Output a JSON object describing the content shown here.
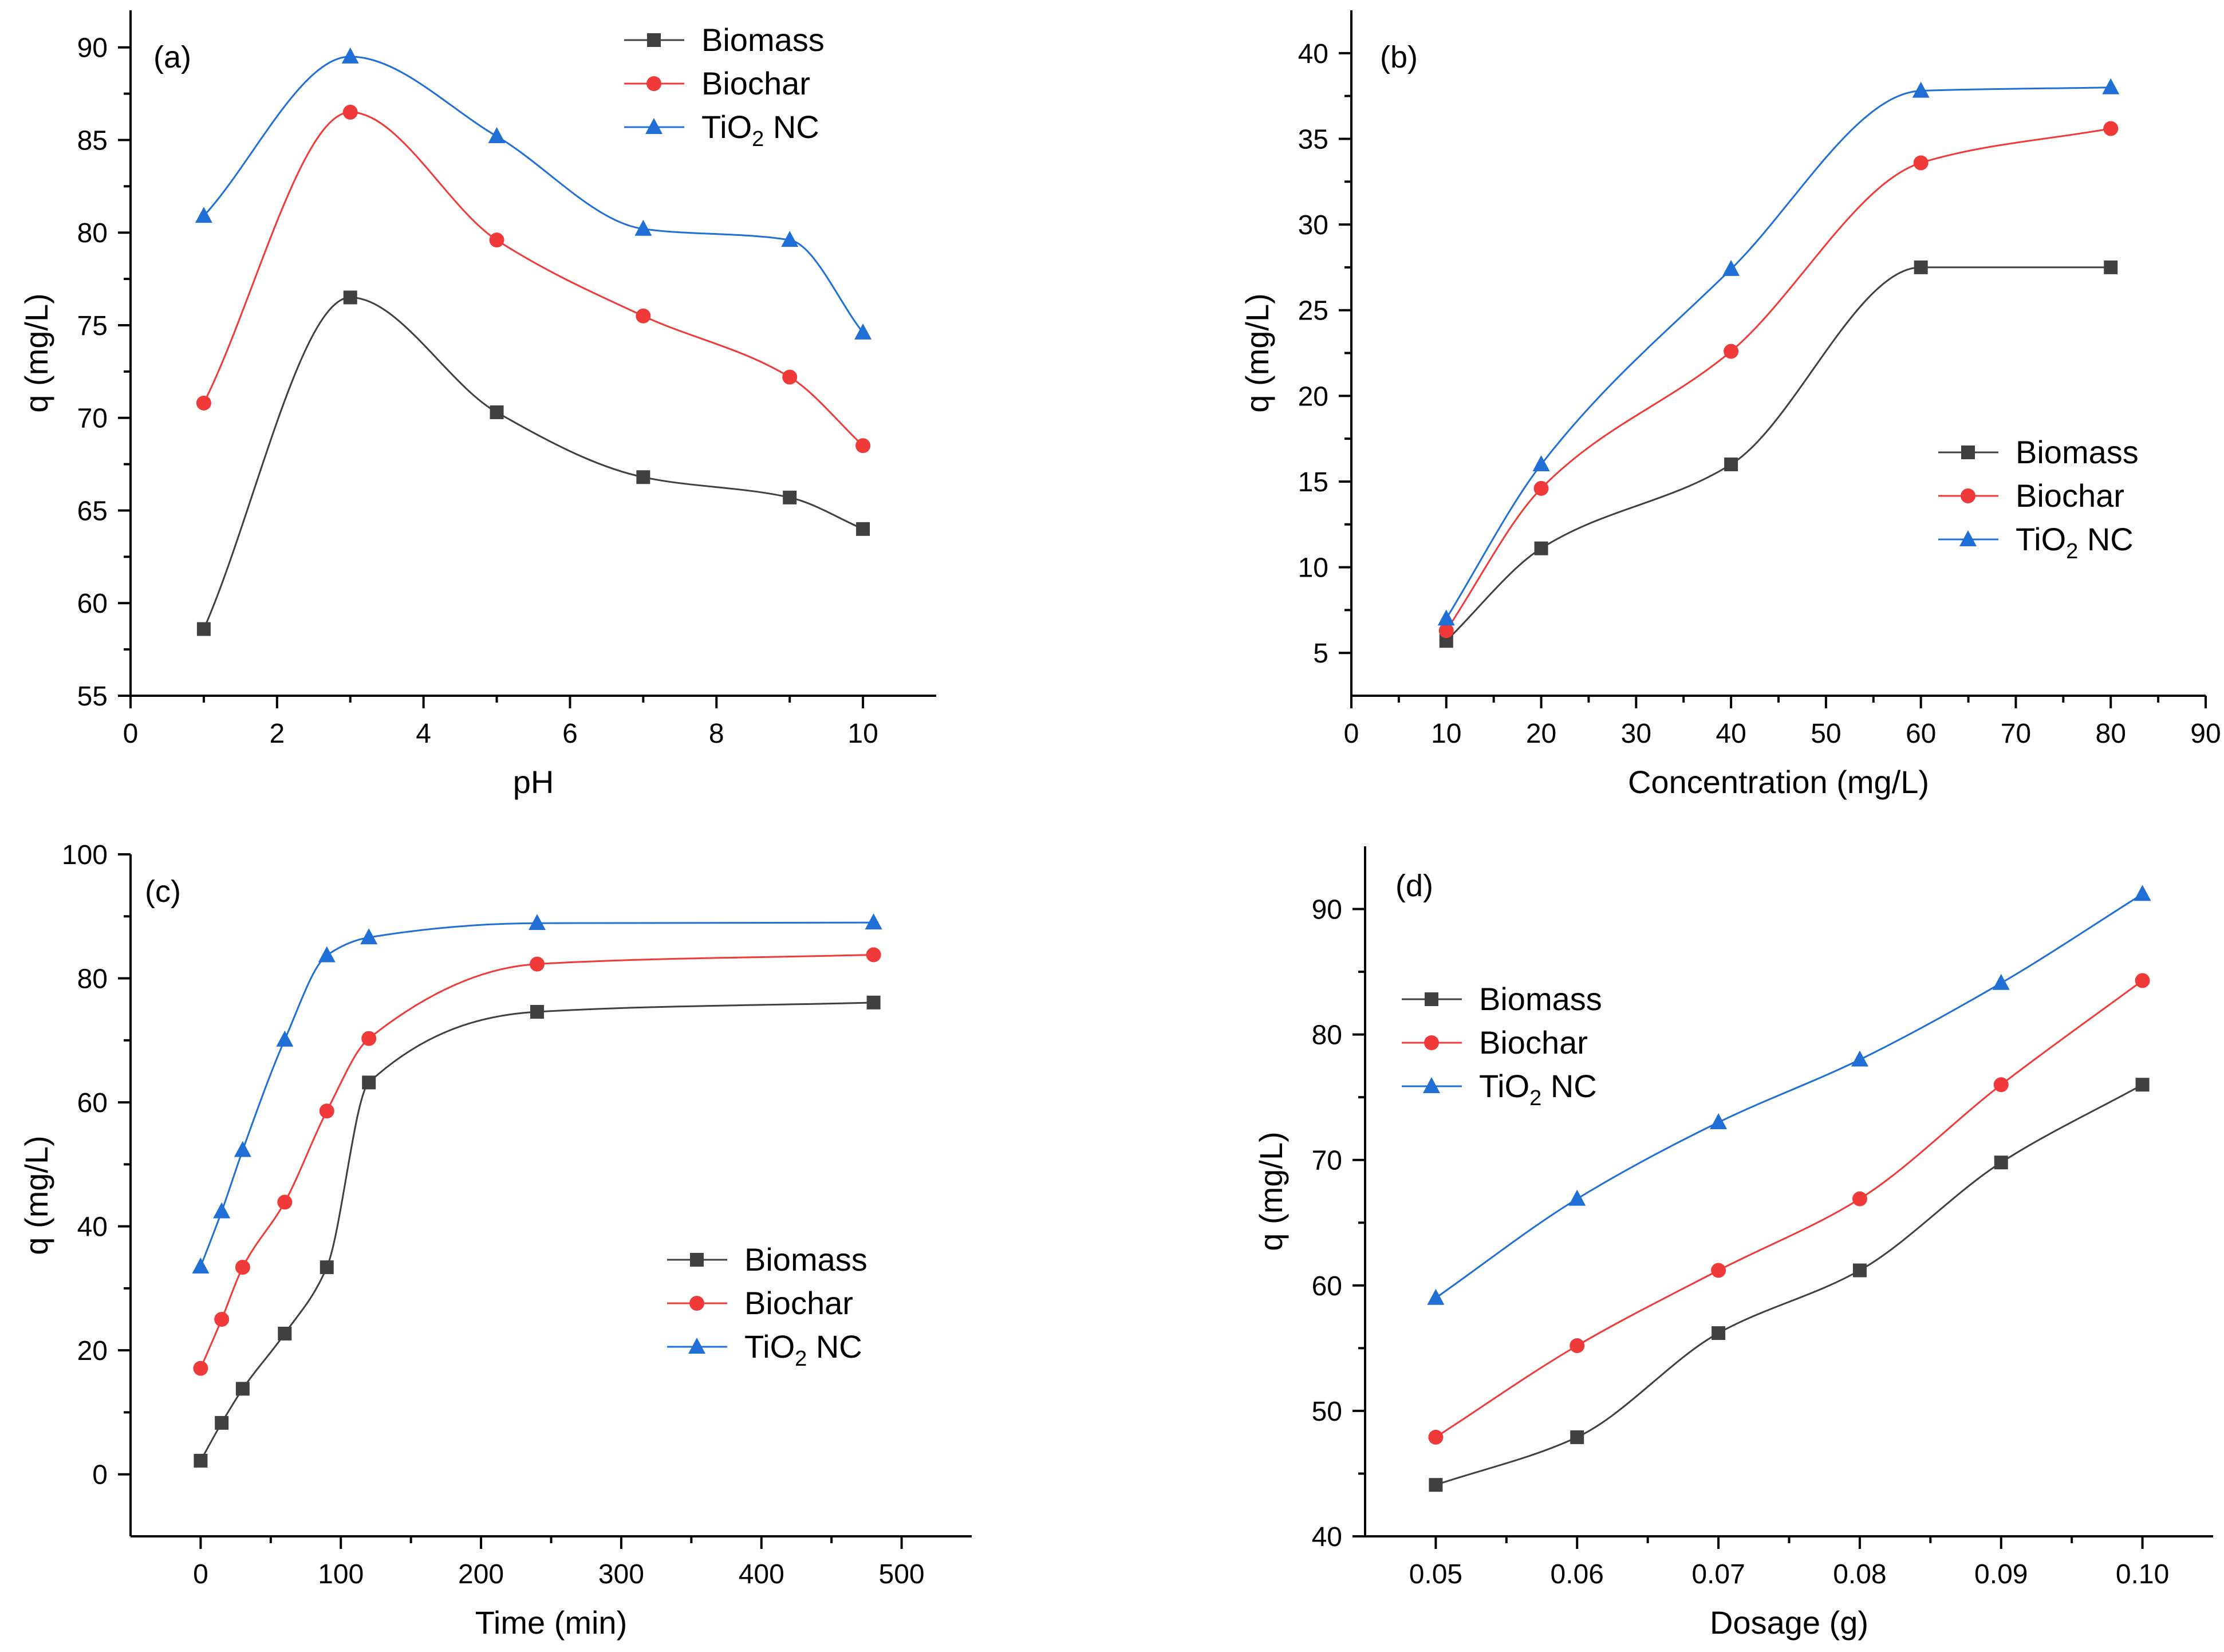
{
  "chart_data": [
    {
      "type": "line",
      "panel_label": "(a)",
      "title": "",
      "xlabel": "pH",
      "ylabel": "q (mg/L)",
      "xlim": [
        0,
        11
      ],
      "ylim": [
        55,
        92
      ],
      "xticks": [
        0,
        2,
        4,
        6,
        8,
        10
      ],
      "xtick_labels": [
        "0",
        "2",
        "4",
        "6",
        "8",
        "10"
      ],
      "yticks": [
        55,
        60,
        65,
        70,
        75,
        80,
        85,
        90
      ],
      "ytick_labels": [
        "55",
        "60",
        "65",
        "70",
        "75",
        "80",
        "85",
        "90"
      ],
      "x": [
        1,
        3,
        5,
        7,
        9,
        10
      ],
      "legend_position": "top-right",
      "series": [
        {
          "name": "Biomass",
          "legend_main": "Biomass",
          "legend_sub": "",
          "legend_tail": "",
          "marker": "square",
          "color": "#404040",
          "values": [
            58.6,
            76.5,
            70.3,
            66.8,
            65.7,
            64.0
          ]
        },
        {
          "name": "Biochar",
          "legend_main": "Biochar",
          "legend_sub": "",
          "legend_tail": "",
          "marker": "circle",
          "color": "#f03a3a",
          "values": [
            70.8,
            86.5,
            79.6,
            75.5,
            72.2,
            68.5
          ]
        },
        {
          "name": "TiO2 NC",
          "legend_main": "TiO",
          "legend_sub": "2",
          "legend_tail": " NC",
          "marker": "triangle",
          "color": "#1f6fd6",
          "values": [
            80.9,
            89.5,
            85.2,
            80.2,
            79.6,
            74.6
          ]
        }
      ]
    },
    {
      "type": "line",
      "panel_label": "(b)",
      "title": "",
      "xlabel": "Concentration (mg/L)",
      "ylabel": "q (mg/L)",
      "xlim": [
        0,
        90
      ],
      "ylim": [
        2.5,
        42.5
      ],
      "xticks": [
        0,
        10,
        20,
        30,
        40,
        50,
        60,
        70,
        80,
        90
      ],
      "xtick_labels": [
        "0",
        "10",
        "20",
        "30",
        "40",
        "50",
        "60",
        "70",
        "80",
        "90"
      ],
      "yticks": [
        5,
        10,
        15,
        20,
        25,
        30,
        35,
        40
      ],
      "ytick_labels": [
        "5",
        "10",
        "15",
        "20",
        "25",
        "30",
        "35",
        "40"
      ],
      "x": [
        10,
        20,
        40,
        60,
        80
      ],
      "legend_position": "center-right",
      "series": [
        {
          "name": "Biomass",
          "legend_main": "Biomass",
          "legend_sub": "",
          "legend_tail": "",
          "marker": "square",
          "color": "#404040",
          "values": [
            5.7,
            11.1,
            16.0,
            27.5,
            27.5
          ]
        },
        {
          "name": "Biochar",
          "legend_main": "Biochar",
          "legend_sub": "",
          "legend_tail": "",
          "marker": "circle",
          "color": "#f03a3a",
          "values": [
            6.3,
            14.6,
            22.6,
            33.6,
            35.6
          ]
        },
        {
          "name": "TiO2 NC",
          "legend_main": "TiO",
          "legend_sub": "2",
          "legend_tail": " NC",
          "marker": "triangle",
          "color": "#1f6fd6",
          "values": [
            7.0,
            16.0,
            27.4,
            37.8,
            38.0
          ]
        }
      ]
    },
    {
      "type": "line",
      "panel_label": "(c)",
      "title": "",
      "xlabel": "Time (min)",
      "ylabel": "q (mg/L)",
      "xlim": [
        -50,
        550
      ],
      "ylim": [
        -10,
        100
      ],
      "xticks": [
        0,
        100,
        200,
        300,
        400,
        500
      ],
      "xtick_labels": [
        "0",
        "100",
        "200",
        "300",
        "400",
        "500"
      ],
      "yticks": [
        0,
        20,
        40,
        60,
        80,
        100
      ],
      "ytick_labels": [
        "0",
        "20",
        "40",
        "60",
        "80",
        "100"
      ],
      "x": [
        0,
        15,
        30,
        60,
        90,
        120,
        240,
        480
      ],
      "legend_position": "center-right",
      "series": [
        {
          "name": "Biomass",
          "legend_main": "Biomass",
          "legend_sub": "",
          "legend_tail": "",
          "marker": "square",
          "color": "#404040",
          "values": [
            2.2,
            8.3,
            13.8,
            22.7,
            33.4,
            63.2,
            74.6,
            76.1
          ]
        },
        {
          "name": "Biochar",
          "legend_main": "Biochar",
          "legend_sub": "",
          "legend_tail": "",
          "marker": "circle",
          "color": "#f03a3a",
          "values": [
            17.1,
            25.0,
            33.4,
            43.9,
            58.6,
            70.3,
            82.3,
            83.8
          ]
        },
        {
          "name": "TiO2 NC",
          "legend_main": "TiO",
          "legend_sub": "2",
          "legend_tail": " NC",
          "marker": "triangle",
          "color": "#1f6fd6",
          "values": [
            33.5,
            42.4,
            52.3,
            70.1,
            83.7,
            86.6,
            88.9,
            89.0
          ]
        }
      ]
    },
    {
      "type": "line",
      "panel_label": "(d)",
      "title": "",
      "xlabel": "Dosage (g)",
      "ylabel": "q (mg/L)",
      "xlim": [
        0.045,
        0.105
      ],
      "ylim": [
        40,
        95
      ],
      "xticks": [
        0.05,
        0.06,
        0.07,
        0.08,
        0.09,
        0.1
      ],
      "xtick_labels": [
        "0.05",
        "0.06",
        "0.07",
        "0.08",
        "0.09",
        "0.10"
      ],
      "yticks": [
        40,
        50,
        60,
        70,
        80,
        90
      ],
      "ytick_labels": [
        "40",
        "50",
        "60",
        "70",
        "80",
        "90"
      ],
      "x": [
        0.05,
        0.06,
        0.07,
        0.08,
        0.09,
        0.1
      ],
      "legend_position": "top-left",
      "series": [
        {
          "name": "Biomass",
          "legend_main": "Biomass",
          "legend_sub": "",
          "legend_tail": "",
          "marker": "square",
          "color": "#404040",
          "values": [
            44.1,
            47.9,
            56.2,
            61.2,
            69.8,
            76.0
          ]
        },
        {
          "name": "Biochar",
          "legend_main": "Biochar",
          "legend_sub": "",
          "legend_tail": "",
          "marker": "circle",
          "color": "#f03a3a",
          "values": [
            47.9,
            55.2,
            61.2,
            66.9,
            76.0,
            84.3
          ]
        },
        {
          "name": "TiO2 NC",
          "legend_main": "TiO",
          "legend_sub": "2",
          "legend_tail": " NC",
          "marker": "triangle",
          "color": "#1f6fd6",
          "values": [
            59.0,
            66.9,
            73.0,
            78.0,
            84.1,
            91.2
          ]
        }
      ]
    }
  ]
}
